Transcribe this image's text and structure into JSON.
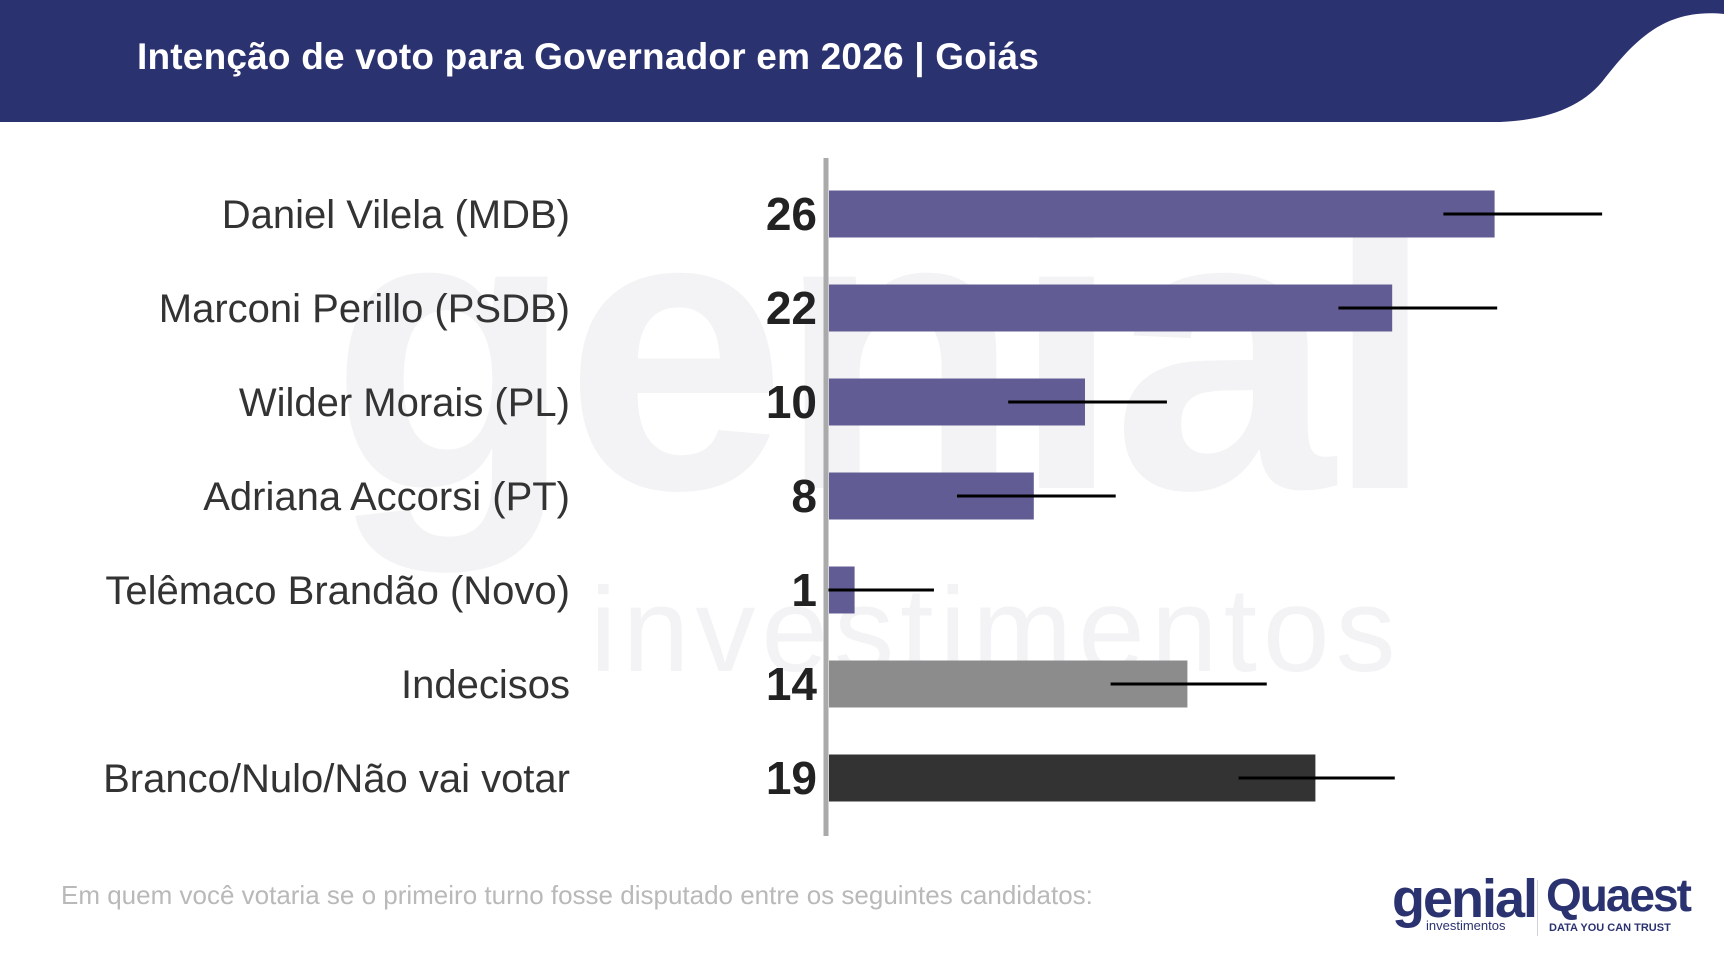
{
  "header": {
    "title": "Intenção de voto para Governador em 2026 | Goiás"
  },
  "watermark": {
    "main": "genial",
    "sub": "investimentos"
  },
  "chart_data": {
    "type": "bar",
    "orientation": "horizontal",
    "categories": [
      "Daniel Vilela (MDB)",
      "Marconi Perillo (PSDB)",
      "Wilder Morais (PL)",
      "Adriana Accorsi (PT)",
      "Telêmaco Brandão (Novo)",
      "Indecisos",
      "Branco/Nulo/Não vai votar"
    ],
    "values": [
      26,
      22,
      10,
      8,
      1,
      14,
      19
    ],
    "value_labels": [
      "26",
      "22",
      "10",
      "8",
      "1",
      "14",
      "19"
    ],
    "error_bars": [
      [
        24,
        30.2
      ],
      [
        19.9,
        26.1
      ],
      [
        7,
        13.2
      ],
      [
        5,
        11.2
      ],
      [
        -0.1,
        4.1
      ],
      [
        11,
        17.1
      ],
      [
        16,
        22.1
      ]
    ],
    "bar_colors": [
      "#625c94",
      "#625c94",
      "#625c94",
      "#625c94",
      "#625c94",
      "#8c8c8c",
      "#333333"
    ],
    "xlim": [
      0,
      35
    ],
    "grid": false,
    "legend": "none"
  },
  "footer": {
    "note": "Em quem você votaria se o primeiro turno fosse disputado entre os seguintes candidatos:",
    "logo_genial": "genial",
    "logo_genial_sub": "investimentos",
    "logo_quaest": "Quaest",
    "logo_quaest_sub": "DATA YOU CAN TRUST"
  },
  "colors": {
    "header_bg": "#2b3270",
    "axis": "#aaaaaa",
    "errorbar": "#000000"
  }
}
